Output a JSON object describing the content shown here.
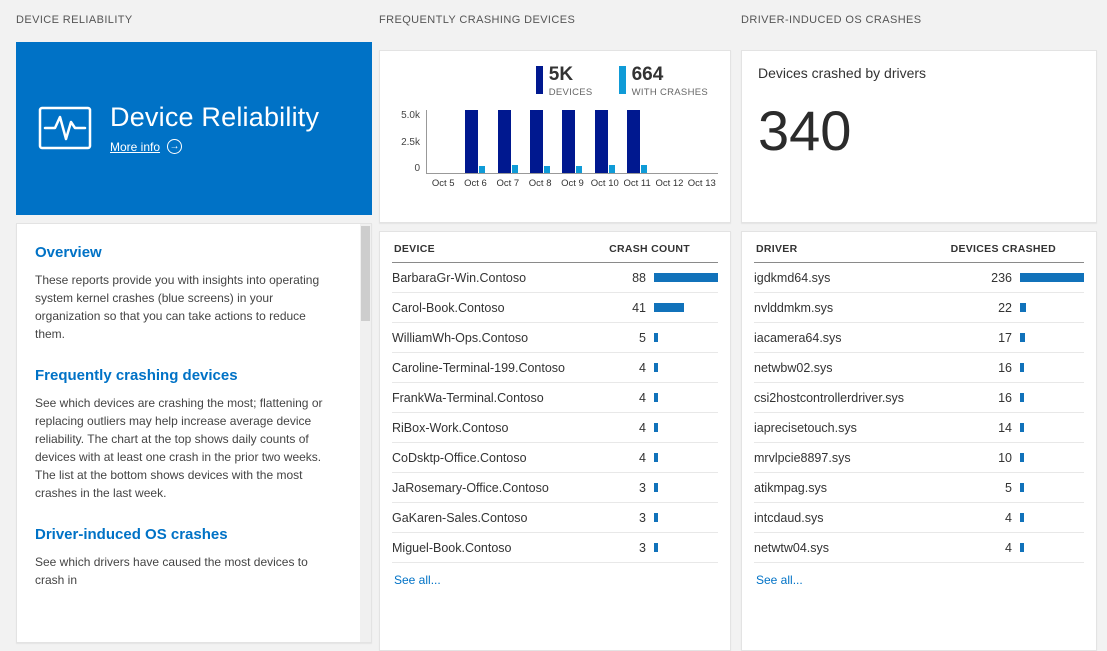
{
  "page": {
    "bg": "#f2f2f2",
    "accent": "#0072c6"
  },
  "icons": {
    "more_info_arrow": "→"
  },
  "left": {
    "header": "DEVICE RELIABILITY",
    "tile": {
      "title": "Device Reliability",
      "more_info": "More info",
      "bg": "#0072c6"
    },
    "sections": [
      {
        "heading": "Overview",
        "body": "These reports provide you with insights into operating system kernel crashes (blue screens) in your organization so that you can take actions to reduce them."
      },
      {
        "heading": "Frequently crashing devices",
        "body": "See which devices are crashing the most; flattening or replacing outliers may help increase average device reliability. The chart at the top shows daily counts of devices with at least one crash in the prior two weeks. The list at the bottom shows devices with the most crashes in the last week."
      },
      {
        "heading": "Driver-induced OS crashes",
        "body": "See which drivers have caused the most devices to crash in"
      }
    ]
  },
  "chart_data": {
    "type": "bar",
    "categories": [
      "Oct 5",
      "Oct 6",
      "Oct 7",
      "Oct 8",
      "Oct 9",
      "Oct 10",
      "Oct 11",
      "Oct 12",
      "Oct 13"
    ],
    "series": [
      {
        "name": "DEVICES",
        "color": "#00188f",
        "values": [
          0,
          5000,
          5000,
          5000,
          5000,
          5000,
          5000,
          0,
          0
        ]
      },
      {
        "name": "WITH CRASHES",
        "color": "#0f9bd7",
        "values": [
          0,
          560,
          600,
          580,
          590,
          630,
          664,
          0,
          0
        ]
      }
    ],
    "legend": [
      {
        "value": "5K",
        "label": "DEVICES"
      },
      {
        "value": "664",
        "label": "WITH CRASHES"
      }
    ],
    "y_ticks": [
      "5.0k",
      "2.5k",
      "0"
    ],
    "ylim": [
      0,
      5000
    ],
    "legend_position": "top"
  },
  "middle": {
    "header": "FREQUENTLY CRASHING DEVICES",
    "table": {
      "columns": [
        "DEVICE",
        "CRASH COUNT"
      ],
      "bar_color": "#1172ba",
      "rows": [
        {
          "device": "BarbaraGr-Win.Contoso",
          "count": 88
        },
        {
          "device": "Carol-Book.Contoso",
          "count": 41
        },
        {
          "device": "WilliamWh-Ops.Contoso",
          "count": 5
        },
        {
          "device": "Caroline-Terminal-199.Contoso",
          "count": 4
        },
        {
          "device": "FrankWa-Terminal.Contoso",
          "count": 4
        },
        {
          "device": "RiBox-Work.Contoso",
          "count": 4
        },
        {
          "device": "CoDsktp-Office.Contoso",
          "count": 4
        },
        {
          "device": "JaRosemary-Office.Contoso",
          "count": 3
        },
        {
          "device": "GaKaren-Sales.Contoso",
          "count": 3
        },
        {
          "device": "Miguel-Book.Contoso",
          "count": 3
        }
      ],
      "see_all": "See all..."
    }
  },
  "right": {
    "header": "DRIVER-INDUCED OS CRASHES",
    "summary": {
      "caption": "Devices crashed by drivers",
      "value": "340"
    },
    "table": {
      "columns": [
        "DRIVER",
        "DEVICES CRASHED"
      ],
      "bar_color": "#1172ba",
      "rows": [
        {
          "driver": "igdkmd64.sys",
          "count": 236
        },
        {
          "driver": "nvlddmkm.sys",
          "count": 22
        },
        {
          "driver": "iacamera64.sys",
          "count": 17
        },
        {
          "driver": "netwbw02.sys",
          "count": 16
        },
        {
          "driver": "csi2hostcontrollerdriver.sys",
          "count": 16
        },
        {
          "driver": "iaprecisetouch.sys",
          "count": 14
        },
        {
          "driver": "mrvlpcie8897.sys",
          "count": 10
        },
        {
          "driver": "atikmpag.sys",
          "count": 5
        },
        {
          "driver": "intcdaud.sys",
          "count": 4
        },
        {
          "driver": "netwtw04.sys",
          "count": 4
        }
      ],
      "see_all": "See all..."
    }
  }
}
